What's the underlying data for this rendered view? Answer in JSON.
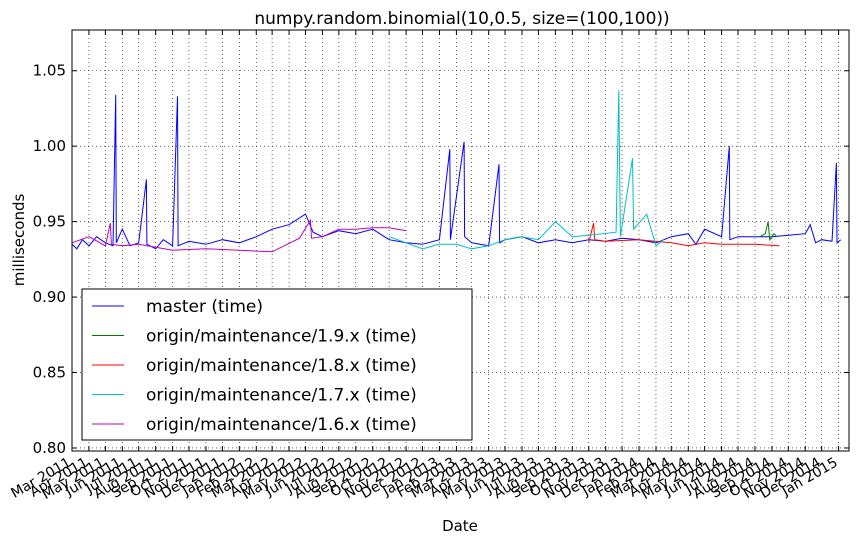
{
  "chart_data": {
    "type": "line",
    "title": "numpy.random.binomial(10,0.5, size=(100,100))",
    "xlabel": "Date",
    "ylabel": "milliseconds",
    "ylim": [
      0.798,
      1.077
    ],
    "xlim": [
      "2011-03-01",
      "2015-01-20"
    ],
    "yticks": [
      0.8,
      0.85,
      0.9,
      0.95,
      1.0,
      1.05
    ],
    "ytick_labels": [
      "0.80",
      "0.85",
      "0.90",
      "0.95",
      "1.00",
      "1.05"
    ],
    "xticks": [
      "2011-03-01",
      "2011-04-01",
      "2011-05-01",
      "2011-06-01",
      "2011-07-01",
      "2011-08-01",
      "2011-09-01",
      "2011-10-01",
      "2011-11-01",
      "2011-12-01",
      "2012-01-01",
      "2012-02-01",
      "2012-03-01",
      "2012-04-01",
      "2012-05-01",
      "2012-06-01",
      "2012-07-01",
      "2012-08-01",
      "2012-09-01",
      "2012-10-01",
      "2012-11-01",
      "2012-12-01",
      "2013-01-01",
      "2013-02-01",
      "2013-03-01",
      "2013-04-01",
      "2013-05-01",
      "2013-06-01",
      "2013-07-01",
      "2013-08-01",
      "2013-09-01",
      "2013-10-01",
      "2013-11-01",
      "2013-12-01",
      "2014-01-01",
      "2014-02-01",
      "2014-03-01",
      "2014-04-01",
      "2014-05-01",
      "2014-06-01",
      "2014-07-01",
      "2014-08-01",
      "2014-09-01",
      "2014-10-01",
      "2014-11-01",
      "2014-12-01",
      "2015-01-01"
    ],
    "xtick_labels": [
      "Mar 2011",
      "Apr 2011",
      "May 2011",
      "Jun 2011",
      "Jul 2011",
      "Aug 2011",
      "Sep 2011",
      "Oct 2011",
      "Nov 2011",
      "Dec 2011",
      "Jan 2012",
      "Feb 2012",
      "Mar 2012",
      "Apr 2012",
      "May 2012",
      "Jun 2012",
      "Jul 2012",
      "Aug 2012",
      "Sep 2012",
      "Oct 2012",
      "Nov 2012",
      "Dec 2012",
      "Jan 2013",
      "Feb 2013",
      "Mar 2013",
      "Apr 2013",
      "May 2013",
      "Jun 2013",
      "Jul 2013",
      "Aug 2013",
      "Sep 2013",
      "Oct 2013",
      "Nov 2013",
      "Dec 2013",
      "Jan 2014",
      "Feb 2014",
      "Mar 2014",
      "Apr 2014",
      "May 2014",
      "Jun 2014",
      "Jul 2014",
      "Aug 2014",
      "Sep 2014",
      "Oct 2014",
      "Nov 2014",
      "Dec 2014",
      "Jan 2015"
    ],
    "grid": true,
    "legend_position": "lower-left",
    "series": [
      {
        "name": "master (time)",
        "color": "#0000ff",
        "points": [
          [
            "2011-03-01",
            0.935
          ],
          [
            "2011-03-10",
            0.932
          ],
          [
            "2011-03-20",
            0.938
          ],
          [
            "2011-04-01",
            0.934
          ],
          [
            "2011-04-15",
            0.94
          ],
          [
            "2011-05-01",
            0.936
          ],
          [
            "2011-05-15",
            0.934
          ],
          [
            "2011-05-20",
            1.034
          ],
          [
            "2011-05-21",
            0.936
          ],
          [
            "2011-06-01",
            0.945
          ],
          [
            "2011-06-15",
            0.934
          ],
          [
            "2011-07-01",
            0.936
          ],
          [
            "2011-07-15",
            0.978
          ],
          [
            "2011-07-16",
            0.935
          ],
          [
            "2011-08-01",
            0.932
          ],
          [
            "2011-08-15",
            0.938
          ],
          [
            "2011-09-01",
            0.934
          ],
          [
            "2011-09-10",
            1.033
          ],
          [
            "2011-09-11",
            0.934
          ],
          [
            "2011-10-01",
            0.937
          ],
          [
            "2011-11-01",
            0.935
          ],
          [
            "2011-12-01",
            0.938
          ],
          [
            "2012-01-01",
            0.936
          ],
          [
            "2012-02-01",
            0.94
          ],
          [
            "2012-03-01",
            0.945
          ],
          [
            "2012-04-01",
            0.948
          ],
          [
            "2012-05-01",
            0.955
          ],
          [
            "2012-05-15",
            0.943
          ],
          [
            "2012-06-01",
            0.94
          ],
          [
            "2012-07-01",
            0.944
          ],
          [
            "2012-08-01",
            0.942
          ],
          [
            "2012-09-01",
            0.945
          ],
          [
            "2012-10-01",
            0.938
          ],
          [
            "2012-11-01",
            0.936
          ],
          [
            "2012-12-01",
            0.935
          ],
          [
            "2013-01-01",
            0.938
          ],
          [
            "2013-01-20",
            0.998
          ],
          [
            "2013-01-21",
            0.938
          ],
          [
            "2013-02-15",
            1.003
          ],
          [
            "2013-02-16",
            0.94
          ],
          [
            "2013-03-01",
            0.936
          ],
          [
            "2013-04-01",
            0.934
          ],
          [
            "2013-04-20",
            0.988
          ],
          [
            "2013-04-21",
            0.936
          ],
          [
            "2013-05-01",
            0.938
          ],
          [
            "2013-06-01",
            0.94
          ],
          [
            "2013-07-01",
            0.936
          ],
          [
            "2013-08-01",
            0.938
          ],
          [
            "2013-09-01",
            0.936
          ],
          [
            "2013-10-01",
            0.938
          ],
          [
            "2013-11-01",
            0.937
          ],
          [
            "2013-12-01",
            0.939
          ],
          [
            "2014-01-01",
            0.938
          ],
          [
            "2014-02-01",
            0.936
          ],
          [
            "2014-03-01",
            0.94
          ],
          [
            "2014-04-01",
            0.942
          ],
          [
            "2014-04-15",
            0.935
          ],
          [
            "2014-05-01",
            0.945
          ],
          [
            "2014-06-01",
            0.94
          ],
          [
            "2014-06-15",
            1.0
          ],
          [
            "2014-06-16",
            0.938
          ],
          [
            "2014-07-01",
            0.94
          ],
          [
            "2014-08-01",
            0.94
          ],
          [
            "2014-09-01",
            0.94
          ],
          [
            "2014-10-01",
            0.941
          ],
          [
            "2014-11-01",
            0.942
          ],
          [
            "2014-11-10",
            0.948
          ],
          [
            "2014-11-20",
            0.936
          ],
          [
            "2014-12-01",
            0.938
          ],
          [
            "2014-12-20",
            0.937
          ],
          [
            "2014-12-28",
            0.989
          ],
          [
            "2014-12-29",
            0.936
          ],
          [
            "2015-01-05",
            0.938
          ]
        ]
      },
      {
        "name": "origin/maintenance/1.9.x (time)",
        "color": "#008000",
        "points": [
          [
            "2014-08-10",
            0.94
          ],
          [
            "2014-08-20",
            0.942
          ],
          [
            "2014-08-25",
            0.95
          ],
          [
            "2014-08-28",
            0.938
          ],
          [
            "2014-09-05",
            0.942
          ],
          [
            "2014-09-10",
            0.94
          ]
        ]
      },
      {
        "name": "origin/maintenance/1.8.x (time)",
        "color": "#ff0000",
        "points": [
          [
            "2013-10-01",
            0.936
          ],
          [
            "2013-10-10",
            0.949
          ],
          [
            "2013-10-12",
            0.938
          ],
          [
            "2013-11-01",
            0.937
          ],
          [
            "2014-01-01",
            0.938
          ],
          [
            "2014-03-01",
            0.936
          ],
          [
            "2014-04-01",
            0.934
          ],
          [
            "2014-05-01",
            0.936
          ],
          [
            "2014-06-01",
            0.935
          ],
          [
            "2014-08-01",
            0.935
          ],
          [
            "2014-09-15",
            0.934
          ]
        ]
      },
      {
        "name": "origin/maintenance/1.7.x (time)",
        "color": "#00bfbf",
        "points": [
          [
            "2012-10-01",
            0.94
          ],
          [
            "2012-11-01",
            0.936
          ],
          [
            "2012-12-01",
            0.932
          ],
          [
            "2013-01-01",
            0.935
          ],
          [
            "2013-02-01",
            0.935
          ],
          [
            "2013-03-01",
            0.932
          ],
          [
            "2013-04-01",
            0.934
          ],
          [
            "2013-05-01",
            0.938
          ],
          [
            "2013-06-01",
            0.94
          ],
          [
            "2013-07-01",
            0.938
          ],
          [
            "2013-08-01",
            0.95
          ],
          [
            "2013-09-01",
            0.94
          ],
          [
            "2013-10-01",
            0.941
          ],
          [
            "2013-11-20",
            0.943
          ],
          [
            "2013-11-25",
            1.037
          ],
          [
            "2013-11-28",
            0.94
          ],
          [
            "2013-12-20",
            0.992
          ],
          [
            "2013-12-22",
            0.945
          ],
          [
            "2014-01-15",
            0.955
          ],
          [
            "2014-02-01",
            0.934
          ],
          [
            "2014-02-15",
            0.938
          ]
        ]
      },
      {
        "name": "origin/maintenance/1.6.x (time)",
        "color": "#bf00bf",
        "points": [
          [
            "2011-03-01",
            0.936
          ],
          [
            "2011-04-01",
            0.94
          ],
          [
            "2011-05-01",
            0.934
          ],
          [
            "2011-05-10",
            0.949
          ],
          [
            "2011-05-12",
            0.935
          ],
          [
            "2011-06-01",
            0.934
          ],
          [
            "2011-07-01",
            0.935
          ],
          [
            "2011-08-01",
            0.933
          ],
          [
            "2011-09-01",
            0.931
          ],
          [
            "2011-11-01",
            0.932
          ],
          [
            "2012-01-01",
            0.931
          ],
          [
            "2012-03-01",
            0.93
          ],
          [
            "2012-04-20",
            0.939
          ],
          [
            "2012-05-10",
            0.951
          ],
          [
            "2012-05-12",
            0.939
          ],
          [
            "2012-06-01",
            0.94
          ],
          [
            "2012-07-01",
            0.945
          ],
          [
            "2012-08-01",
            0.945
          ],
          [
            "2012-09-01",
            0.946
          ],
          [
            "2012-10-01",
            0.946
          ],
          [
            "2012-11-01",
            0.944
          ]
        ]
      }
    ]
  }
}
